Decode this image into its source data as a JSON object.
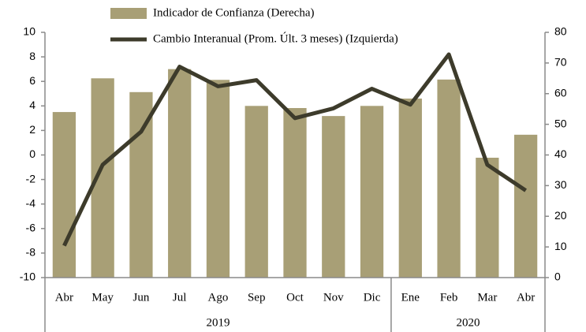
{
  "chart_data": {
    "type": "bar-line",
    "categories": [
      "Abr",
      "May",
      "Jun",
      "Jul",
      "Ago",
      "Sep",
      "Oct",
      "Nov",
      "Dic",
      "Ene",
      "Feb",
      "Mar",
      "Abr"
    ],
    "groups": [
      {
        "label": "2019",
        "span": 9
      },
      {
        "label": "2020",
        "span": 4
      }
    ],
    "series": [
      {
        "name": "Indicador de Confianza (Derecha)",
        "type": "bar",
        "axis": "y2",
        "color": "#a89f76",
        "values": [
          54,
          65,
          60.5,
          68,
          64.5,
          56,
          55.3,
          52.7,
          56,
          58.4,
          64.6,
          39.1,
          46.6
        ]
      },
      {
        "name": "Cambio Interanual (Prom. Últ. 3 meses) (Izquierda)",
        "type": "line",
        "axis": "y",
        "color": "#3d3b2b",
        "values": [
          -7.4,
          -0.8,
          1.9,
          7.2,
          5.6,
          6.1,
          3.0,
          3.8,
          5.4,
          4.1,
          8.2,
          -0.8,
          -2.9
        ]
      }
    ],
    "ylim": [
      -10,
      10
    ],
    "yticks": [
      -10,
      -8,
      -6,
      -4,
      -2,
      0,
      2,
      4,
      6,
      8,
      10
    ],
    "y2lim": [
      0,
      80
    ],
    "y2ticks": [
      0,
      10,
      20,
      30,
      40,
      50,
      60,
      70,
      80
    ]
  }
}
